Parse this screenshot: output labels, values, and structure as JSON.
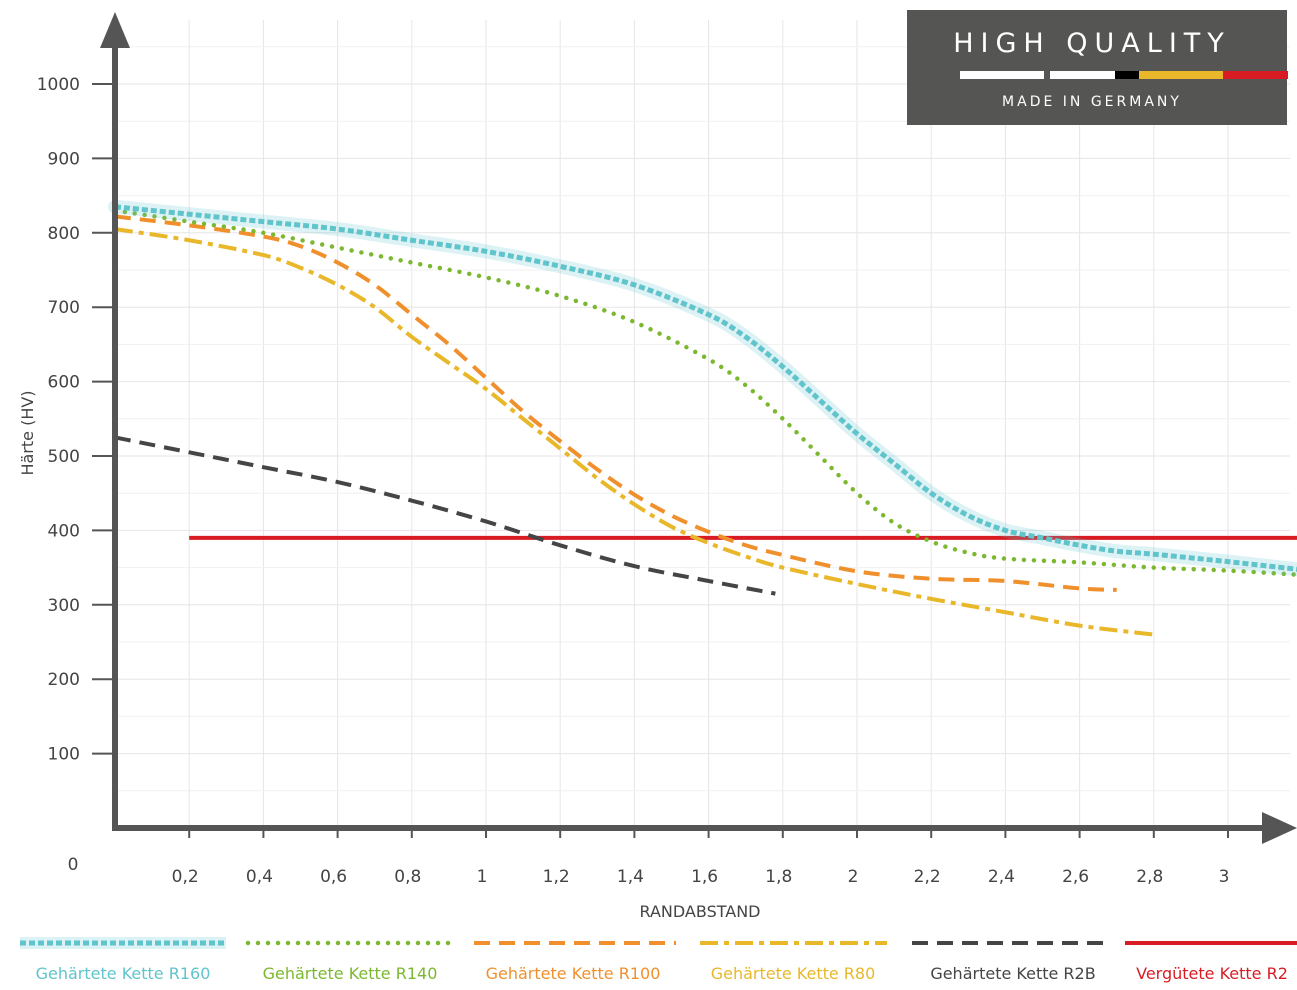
{
  "badge": {
    "top_text": "HIGH QUALITY",
    "bottom_text": "MADE IN GERMANY",
    "background": "#555553",
    "flag_colors": [
      "#000000",
      "#e8b82a",
      "#d91c24"
    ]
  },
  "chart_data": {
    "type": "line",
    "xlabel": "RANDABSTAND",
    "ylabel": "Härte (HV)",
    "xlim": [
      0,
      3.2
    ],
    "ylim": [
      0,
      1080
    ],
    "x_ticks": [
      0.2,
      0.4,
      0.6,
      0.8,
      1,
      1.2,
      1.4,
      1.6,
      1.8,
      2,
      2.2,
      2.4,
      2.6,
      2.8,
      3
    ],
    "x_tick_labels": [
      "0,2",
      "0,4",
      "0,6",
      "0,8",
      "1",
      "1,2",
      "1,4",
      "1,6",
      "1,8",
      "2",
      "2,2",
      "2,4",
      "2,6",
      "2,8",
      "3"
    ],
    "y_ticks": [
      100,
      200,
      300,
      400,
      500,
      600,
      700,
      800,
      900,
      1000
    ],
    "y_tick_labels": [
      "100",
      "200",
      "300",
      "400",
      "500",
      "600",
      "700",
      "800",
      "900",
      "1000"
    ],
    "origin_label": "0",
    "grid": true,
    "legend_position": "bottom",
    "series": [
      {
        "name": "Gehärtete Kette R160",
        "color": "#5fc4cb",
        "style": "dotted-band",
        "x": [
          0,
          0.2,
          0.4,
          0.6,
          0.8,
          1.0,
          1.2,
          1.4,
          1.6,
          1.7,
          1.8,
          1.9,
          2.0,
          2.1,
          2.2,
          2.3,
          2.4,
          2.5,
          2.6,
          2.7,
          2.8,
          3.0,
          3.2
        ],
        "y": [
          835,
          825,
          815,
          805,
          790,
          775,
          755,
          730,
          690,
          660,
          620,
          575,
          530,
          490,
          450,
          420,
          400,
          390,
          380,
          372,
          368,
          358,
          347
        ]
      },
      {
        "name": "Gehärtete Kette R140",
        "color": "#7cb82f",
        "style": "dotted",
        "x": [
          0,
          0.2,
          0.4,
          0.6,
          0.8,
          1.0,
          1.2,
          1.4,
          1.6,
          1.7,
          1.8,
          1.9,
          2.0,
          2.1,
          2.2,
          2.3,
          2.4,
          2.6,
          2.8,
          3.0,
          3.2
        ],
        "y": [
          830,
          815,
          800,
          780,
          760,
          740,
          715,
          680,
          630,
          595,
          550,
          500,
          450,
          410,
          385,
          370,
          362,
          357,
          350,
          346,
          340
        ]
      },
      {
        "name": "Gehärtete Kette R100",
        "color": "#f0902c",
        "style": "dashed",
        "x": [
          0,
          0.2,
          0.4,
          0.5,
          0.6,
          0.7,
          0.8,
          0.9,
          1.0,
          1.1,
          1.2,
          1.3,
          1.4,
          1.5,
          1.6,
          1.7,
          1.8,
          2.0,
          2.2,
          2.4,
          2.6,
          2.7
        ],
        "y": [
          822,
          810,
          795,
          782,
          760,
          730,
          690,
          650,
          605,
          560,
          520,
          482,
          448,
          420,
          398,
          380,
          367,
          345,
          335,
          332,
          322,
          320
        ]
      },
      {
        "name": "Gehärtete Kette R80",
        "color": "#e8b82a",
        "style": "dash-dot",
        "x": [
          0,
          0.2,
          0.4,
          0.5,
          0.6,
          0.7,
          0.8,
          0.9,
          1.0,
          1.1,
          1.2,
          1.3,
          1.4,
          1.5,
          1.6,
          1.7,
          1.8,
          2.0,
          2.2,
          2.4,
          2.6,
          2.8
        ],
        "y": [
          805,
          790,
          770,
          753,
          730,
          700,
          660,
          625,
          590,
          550,
          510,
          470,
          435,
          405,
          383,
          365,
          350,
          328,
          308,
          290,
          272,
          260
        ]
      },
      {
        "name": "Gehärtete Kette R2B",
        "color": "#454545",
        "style": "dashed",
        "x": [
          0,
          0.2,
          0.4,
          0.6,
          0.8,
          1.0,
          1.2,
          1.4,
          1.6,
          1.78
        ],
        "y": [
          525,
          505,
          485,
          465,
          440,
          412,
          380,
          352,
          332,
          315
        ]
      },
      {
        "name": "Vergütete Kette R2",
        "color": "#d91c24",
        "style": "solid",
        "x": [
          0.2,
          3.2
        ],
        "y": [
          390,
          390
        ]
      }
    ]
  }
}
